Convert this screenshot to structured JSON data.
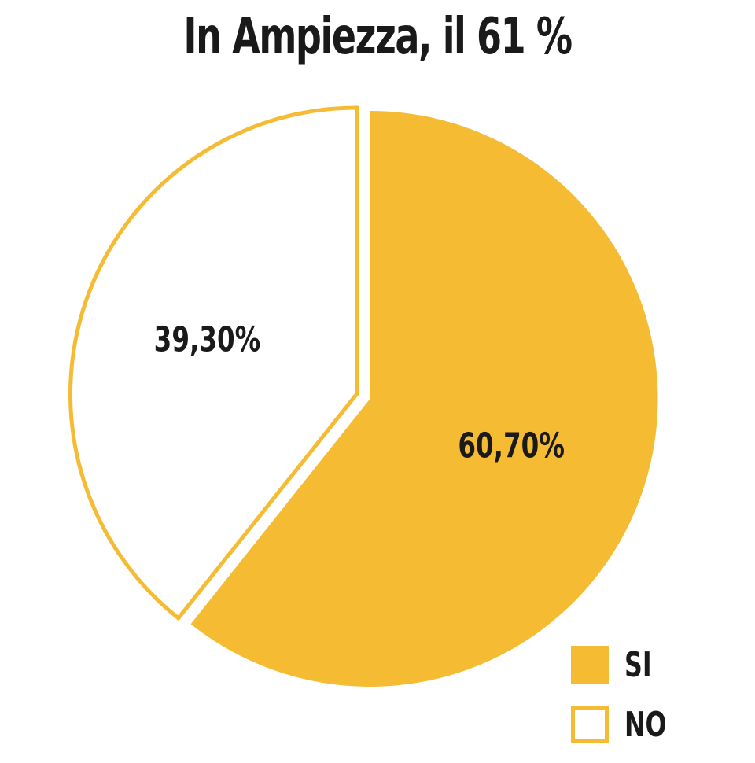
{
  "chart_data": {
    "type": "pie",
    "title": "In Ampiezza, il 61 %",
    "slices": [
      {
        "name": "SI",
        "value": 60.7,
        "label": "60,70%",
        "color": "#f5bc33",
        "style": "filled"
      },
      {
        "name": "NO",
        "value": 39.3,
        "label": "39,30%",
        "color": "#f5bc33",
        "style": "outline"
      }
    ],
    "legend": {
      "placement": "bottom-right",
      "items": [
        {
          "label": "SI",
          "style": "filled"
        },
        {
          "label": "NO",
          "style": "outline"
        }
      ]
    },
    "colors": {
      "accent": "#f5bc33",
      "text": "#1a1a1a",
      "background": "#ffffff"
    }
  }
}
